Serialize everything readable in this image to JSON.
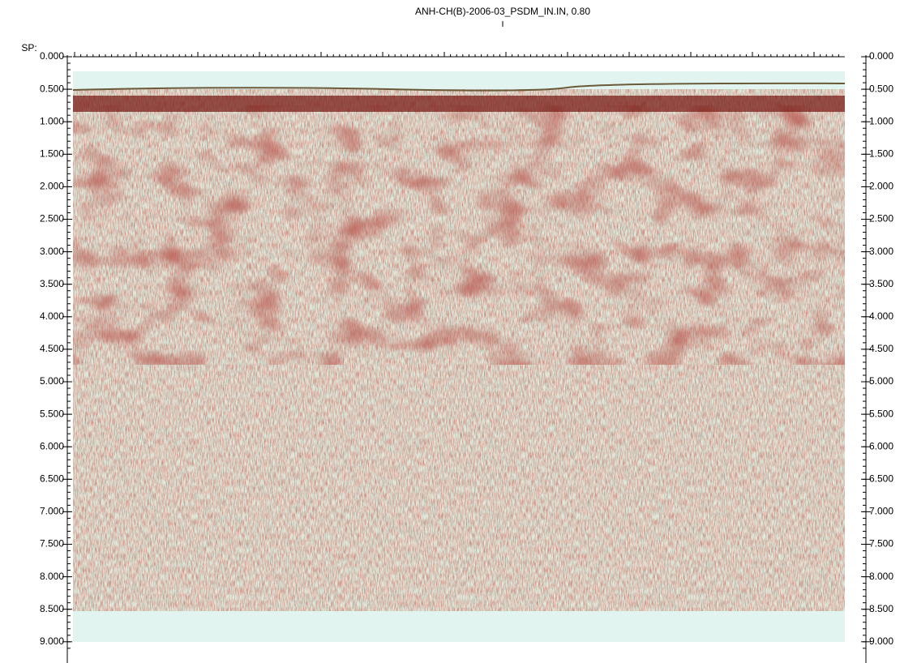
{
  "header": {
    "title": "ANH-CH(B)-2006-03_PSDM_IN.IN, 0.80"
  },
  "axis": {
    "label": "SP:",
    "left_ticks": [
      "0.000",
      "0.500",
      "1.000",
      "1.500",
      "2.000",
      "2.500",
      "3.000",
      "3.500",
      "4.000",
      "4.500",
      "5.000",
      "5.500",
      "6.000",
      "6.500",
      "7.000",
      "7.500",
      "8.000",
      "8.500",
      "9.000"
    ],
    "right_ticks": [
      "0.000",
      "0.500",
      "1.000",
      "1.500",
      "2.000",
      "2.500",
      "3.000",
      "3.500",
      "4.000",
      "4.500",
      "5.000",
      "5.500",
      "6.000",
      "6.500",
      "7.000",
      "7.500",
      "8.000",
      "8.500",
      "9.000"
    ]
  }
}
